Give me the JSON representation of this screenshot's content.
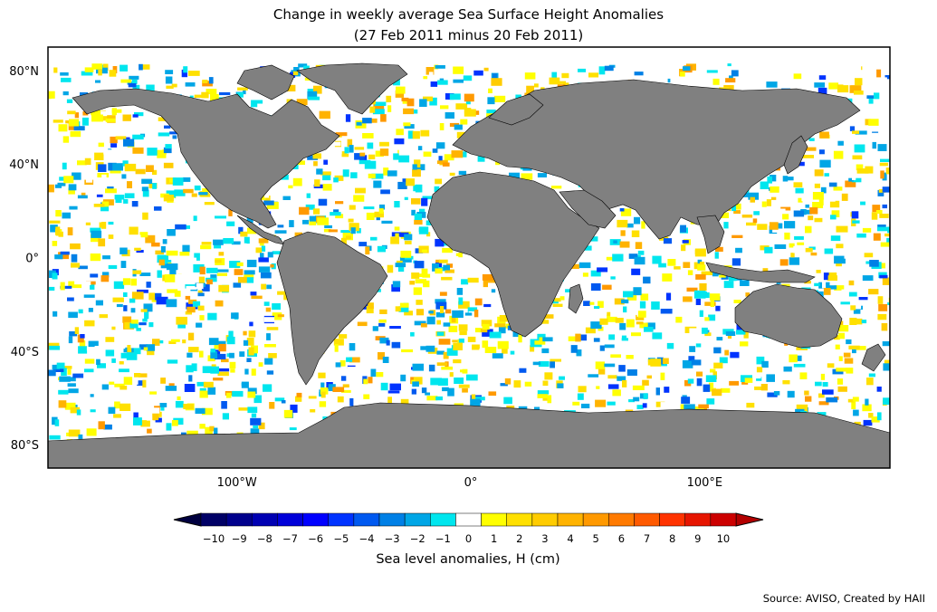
{
  "title": {
    "line1": "Change in weekly average Sea Surface Height Anomalies",
    "line2": "(27 Feb 2011 minus 20 Feb 2011)"
  },
  "map": {
    "lat_ticks": [
      "80°N",
      "40°N",
      "0°",
      "40°S",
      "80°S"
    ],
    "lat_values": [
      80,
      40,
      0,
      -40,
      -80
    ],
    "lon_ticks": [
      "100°W",
      "0°",
      "100°E"
    ],
    "lon_values": [
      -100,
      0,
      100
    ],
    "lon_range": [
      -180,
      180
    ],
    "lat_range": [
      -90,
      90
    ],
    "land_color": "#808080",
    "ocean_no_change_color": "#ffffff"
  },
  "colorbar": {
    "label": "Sea level anomalies, H (cm)",
    "tick_labels": [
      "−10",
      "−9",
      "−8",
      "−7",
      "−6",
      "−5",
      "−4",
      "−3",
      "−2",
      "−1",
      "0",
      "1",
      "2",
      "3",
      "4",
      "5",
      "6",
      "7",
      "8",
      "9",
      "10"
    ],
    "colors": [
      "#000066",
      "#00008c",
      "#0000b3",
      "#0000d9",
      "#0000ff",
      "#0033ff",
      "#0059f0",
      "#0080e6",
      "#00a6e6",
      "#00e6ee",
      "#ffffff",
      "#ffff00",
      "#ffe000",
      "#ffcc00",
      "#ffb300",
      "#ff9900",
      "#ff7a00",
      "#ff5a00",
      "#ff3300",
      "#e61500",
      "#cc0000"
    ],
    "under_color": "#000040",
    "over_color": "#b30000"
  },
  "source": "Source: AVISO, Created by HAII"
}
